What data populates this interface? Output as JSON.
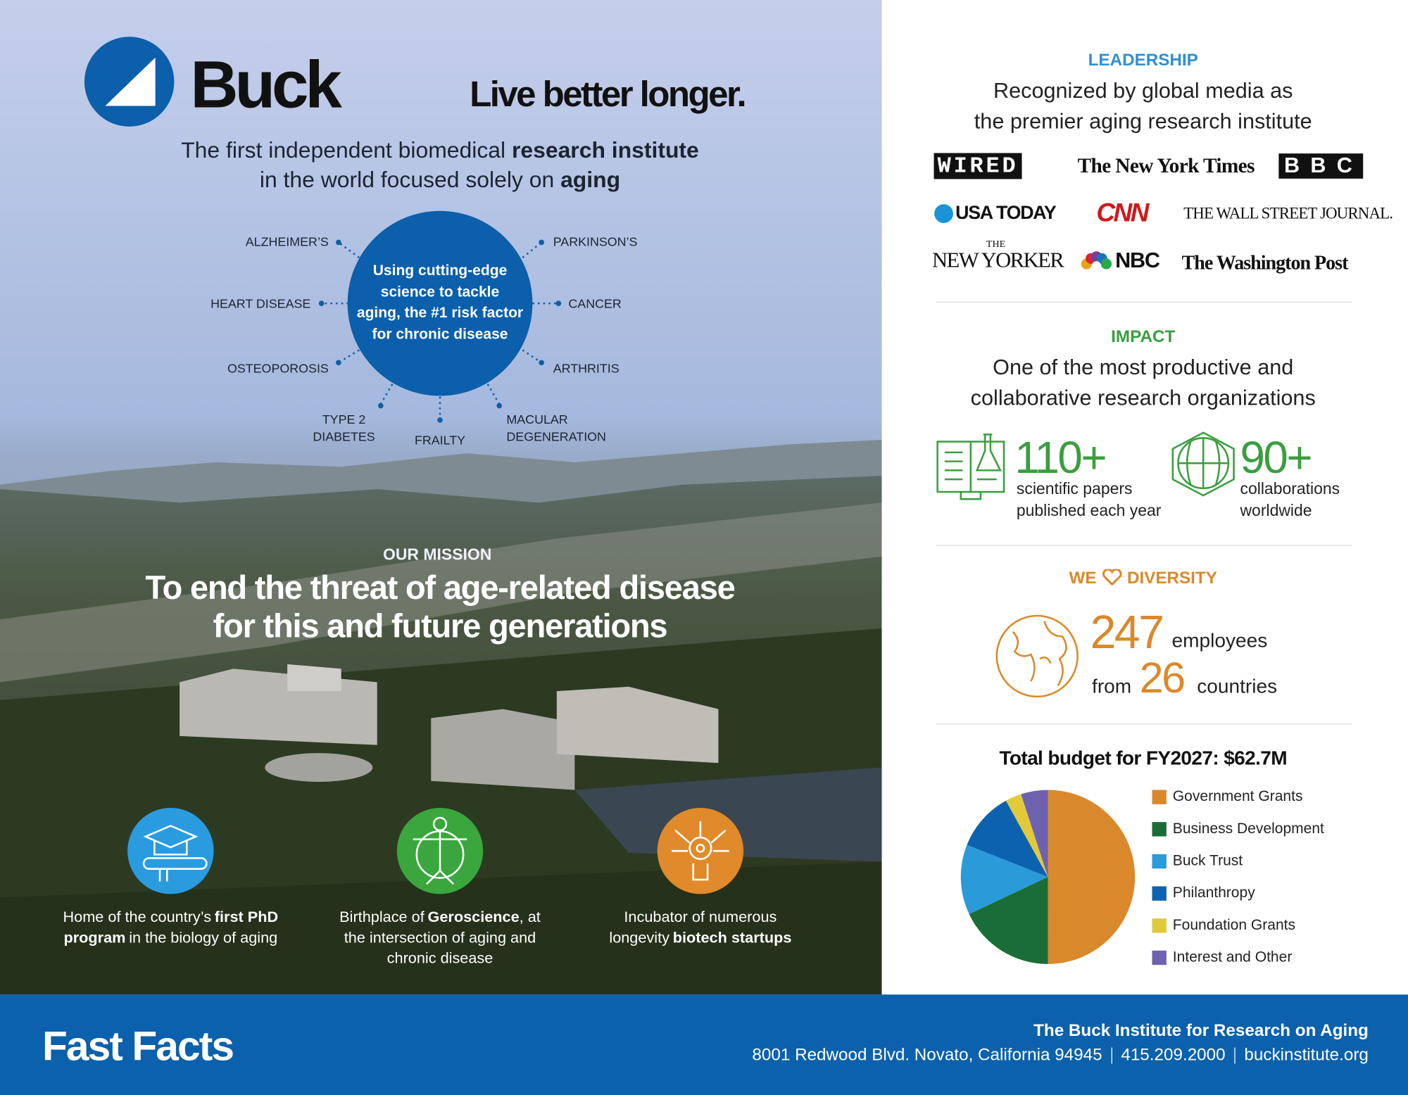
{
  "header": {
    "logo": "Buck",
    "tagline": "Live better longer.",
    "intro": [
      {
        "text": "The first independent biomedical",
        "bold": "research institute"
      },
      {
        "text": "in the world focused solely on",
        "bold": "aging"
      }
    ]
  },
  "focus": {
    "center_lines": [
      "Using cutting-edge",
      "science to tackle",
      "aging, the #1 risk factor",
      "for chronic disease"
    ],
    "diseases": [
      "ALZHEIMER’S",
      "PARKINSON’S",
      "HEART DISEASE",
      "CANCER",
      "OSTEOPOROSIS",
      "ARTHRITIS",
      "TYPE 2 DIABETES",
      "FRAILTY",
      "MACULAR DEGENERATION"
    ]
  },
  "mission": {
    "label": "OUR MISSION",
    "lines": [
      "To end the threat of age-related disease",
      "for this and future generations"
    ]
  },
  "features": [
    {
      "before": "Home of the country’s",
      "bold": "first PhD program",
      "after": "in the biology of aging"
    },
    {
      "before": "Birthplace of",
      "bold": "Geroscience",
      "after": ", at the intersection of aging and chronic disease"
    },
    {
      "before": "Incubator of numerous longevity",
      "bold": "biotech startups"
    }
  ],
  "leadership": {
    "label": "LEADERSHIP",
    "lines": [
      "Recognized by global media as",
      "the premier aging research institute"
    ],
    "media": [
      "WIRED",
      "The New York Times",
      "BBC",
      "USA TODAY",
      "CNN",
      "THE WALL STREET JOURNAL.",
      "THE",
      "NEW YORKER",
      "NBC",
      "The Washington Post"
    ]
  },
  "impact": {
    "label": "IMPACT",
    "lines": [
      "One of the most productive and",
      "collaborative research organizations"
    ],
    "stats": [
      {
        "value": "110+",
        "lines": [
          "scientific papers",
          "published each year"
        ]
      },
      {
        "value": "90+",
        "lines": [
          "collaborations",
          "worldwide"
        ]
      }
    ]
  },
  "diversity": {
    "label_before": "WE",
    "label_after": "DIVERSITY",
    "employees": 247,
    "employees_label": "employees",
    "from": "from",
    "countries": 26,
    "countries_label": "countries"
  },
  "budget": {
    "type": "pie",
    "title": "Total budget for FY2027: $62.7M",
    "categories": [
      "Government Grants",
      "Business Development",
      "Buck Trust",
      "Philanthropy",
      "Foundation Grants",
      "Interest and Other"
    ],
    "values": [
      50,
      18,
      13,
      11,
      3,
      5
    ],
    "colors": [
      "#d9892b",
      "#1a6e35",
      "#2a9bd8",
      "#0d62b0",
      "#e2c93a",
      "#6e62b0"
    ]
  },
  "footer": {
    "title": "Fast Facts",
    "org": "The Buck Institute for Research on Aging",
    "address": "8001 Redwood Blvd. Novato, California 94945",
    "phone": "415.209.2000",
    "website": "buckinstitute.org"
  }
}
